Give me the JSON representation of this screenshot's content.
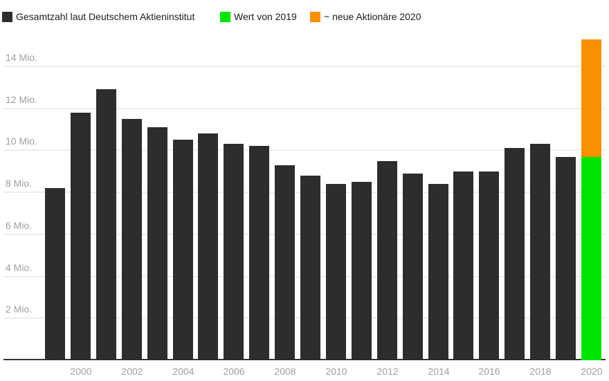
{
  "chart_data": {
    "type": "bar",
    "title": "",
    "unit": "Mio.",
    "legend": [
      {
        "key": "total",
        "label": "Gesamtzahl laut Deutschem Aktieninstitut",
        "color": "#2e2c2d"
      },
      {
        "key": "value2019",
        "label": "Wert von 2019",
        "color": "#00e300"
      },
      {
        "key": "new2020",
        "label": "~ neue Aktionäre 2020",
        "color": "#f89000"
      }
    ],
    "categories": [
      1999,
      2000,
      2001,
      2002,
      2003,
      2004,
      2005,
      2006,
      2007,
      2008,
      2009,
      2010,
      2011,
      2012,
      2013,
      2014,
      2015,
      2016,
      2017,
      2018,
      2019,
      2020
    ],
    "series": [
      {
        "name": "Gesamtzahl laut Deutschem Aktieninstitut",
        "values_mio": [
          8.2,
          11.8,
          12.9,
          11.5,
          11.1,
          10.5,
          10.8,
          10.3,
          10.2,
          9.3,
          8.8,
          8.4,
          8.5,
          9.5,
          8.9,
          8.4,
          9.0,
          9.0,
          10.1,
          10.3,
          9.7,
          null
        ]
      }
    ],
    "bar_2020_stack": {
      "wert_von_2019_mio": 9.7,
      "neue_aktionaere_mio": 5.6,
      "total_mio": 15.3
    },
    "axis": {
      "ytick_values_mio": [
        2,
        4,
        6,
        8,
        10,
        12,
        14
      ],
      "ytick_labels": [
        "2 Mio.",
        "4 Mio.",
        "6 Mio.",
        "8 Mio.",
        "10 Mio.",
        "12 Mio.",
        "14 Mio."
      ],
      "xtick_labels": [
        "2000",
        "2002",
        "2004",
        "2006",
        "2008",
        "2010",
        "2012",
        "2014",
        "2016",
        "2018",
        "2020"
      ],
      "ylim_mio": [
        0,
        15.5
      ],
      "grid": "horizontal"
    },
    "colors": {
      "bar_dark": "#2e2c2d",
      "bar_green": "#00e300",
      "bar_orange": "#f89000",
      "gridline": "#ededed",
      "baseline": "#333333",
      "axis_label": "#9e9e9e",
      "legend_text": "#1c1c1c",
      "background": "#ffffff"
    }
  }
}
